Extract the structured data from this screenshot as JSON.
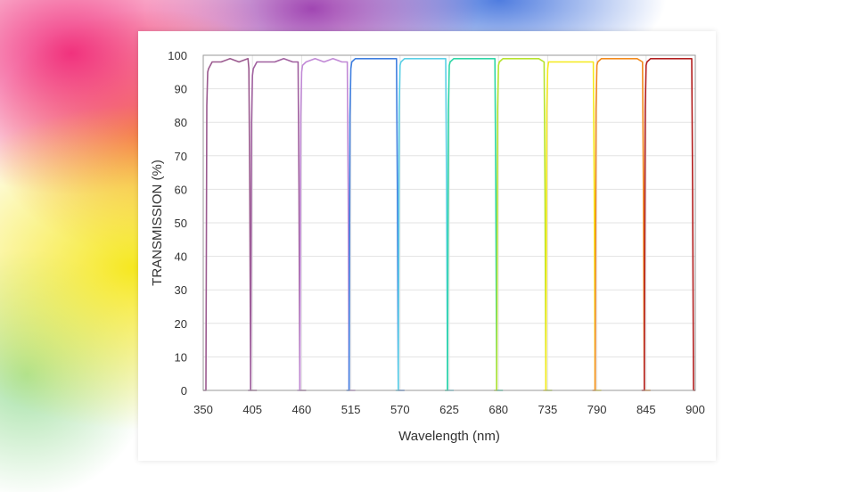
{
  "chart_data": {
    "type": "line",
    "title": "",
    "xlabel": "Wavelength (nm)",
    "ylabel": "TRANSMISSION (%)",
    "xlim": [
      350,
      900
    ],
    "ylim": [
      0,
      100
    ],
    "x_ticks": [
      350,
      405,
      460,
      515,
      570,
      625,
      680,
      735,
      790,
      845,
      900
    ],
    "y_ticks": [
      0,
      10,
      20,
      30,
      40,
      50,
      60,
      70,
      80,
      90,
      100
    ],
    "grid": true,
    "legend": "none",
    "series": [
      {
        "color": "#9b5a8f",
        "x": [
          350,
          353,
          354,
          355,
          356,
          360,
          370,
          380,
          390,
          400,
          401,
          402,
          403,
          410
        ],
        "y": [
          0,
          0,
          85,
          95,
          96,
          98,
          98,
          99,
          98,
          99,
          96,
          60,
          0,
          0
        ]
      },
      {
        "color": "#a0609f",
        "x": [
          400,
          403,
          404,
          405,
          406,
          410,
          420,
          430,
          440,
          450,
          456,
          457,
          458,
          465
        ],
        "y": [
          0,
          0,
          80,
          94,
          96,
          98,
          98,
          98,
          99,
          98,
          98,
          60,
          0,
          0
        ]
      },
      {
        "color": "#c189d6",
        "x": [
          455,
          458,
          459,
          460,
          461,
          465,
          475,
          485,
          495,
          505,
          511,
          512,
          513,
          520
        ],
        "y": [
          0,
          0,
          82,
          95,
          97,
          98,
          99,
          98,
          99,
          98,
          98,
          60,
          0,
          0
        ]
      },
      {
        "color": "#3f7fe0",
        "x": [
          510,
          513,
          514,
          515,
          516,
          520,
          530,
          540,
          550,
          560,
          566,
          567,
          568,
          575
        ],
        "y": [
          0,
          0,
          82,
          96,
          98,
          99,
          99,
          99,
          99,
          99,
          99,
          60,
          0,
          0
        ]
      },
      {
        "color": "#5ad0e6",
        "x": [
          565,
          568,
          569,
          570,
          571,
          575,
          585,
          595,
          605,
          615,
          621,
          622,
          623,
          630
        ],
        "y": [
          0,
          0,
          84,
          97,
          98,
          99,
          99,
          99,
          99,
          99,
          99,
          60,
          0,
          0
        ]
      },
      {
        "color": "#2fd6a6",
        "x": [
          620,
          623,
          624,
          625,
          626,
          630,
          640,
          650,
          660,
          670,
          676,
          677,
          678,
          685
        ],
        "y": [
          0,
          0,
          84,
          97,
          98,
          99,
          99,
          99,
          99,
          99,
          99,
          60,
          0,
          0
        ]
      },
      {
        "color": "#b6e32e",
        "x": [
          675,
          678,
          679,
          680,
          681,
          685,
          695,
          705,
          715,
          725,
          731,
          732,
          733,
          740
        ],
        "y": [
          0,
          0,
          84,
          97,
          98,
          99,
          99,
          99,
          99,
          99,
          98,
          60,
          0,
          0
        ]
      },
      {
        "color": "#f6ea1c",
        "x": [
          730,
          733,
          734,
          735,
          736,
          740,
          750,
          760,
          770,
          780,
          786,
          787,
          788,
          795
        ],
        "y": [
          0,
          0,
          84,
          96,
          98,
          98,
          98,
          98,
          98,
          98,
          98,
          60,
          0,
          0
        ]
      },
      {
        "color": "#f28a1c",
        "x": [
          785,
          788,
          789,
          790,
          791,
          795,
          805,
          815,
          825,
          835,
          841,
          842,
          843,
          850
        ],
        "y": [
          0,
          0,
          84,
          97,
          98,
          99,
          99,
          99,
          99,
          99,
          98,
          60,
          0,
          0
        ]
      },
      {
        "color": "#b32020",
        "x": [
          840,
          843,
          844,
          845,
          846,
          850,
          860,
          870,
          880,
          890,
          896,
          897,
          898,
          900
        ],
        "y": [
          0,
          0,
          84,
          97,
          98,
          99,
          99,
          99,
          99,
          99,
          99,
          60,
          0,
          0
        ]
      }
    ]
  }
}
